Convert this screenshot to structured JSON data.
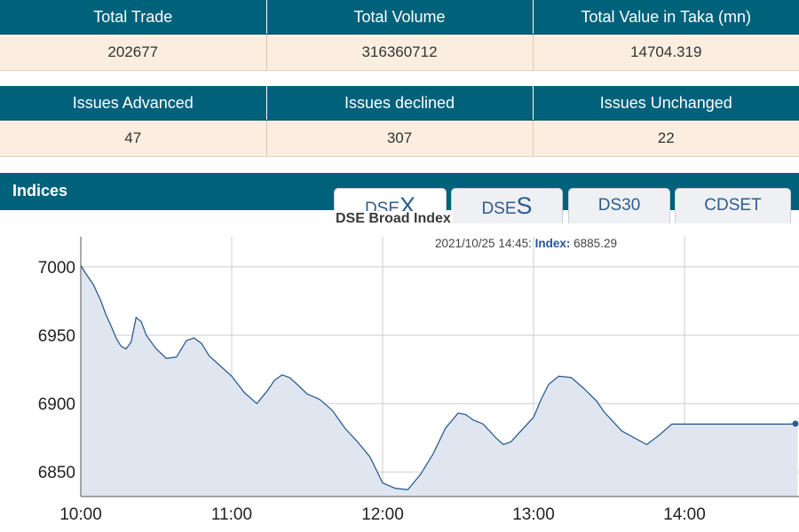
{
  "summary": {
    "headers": [
      "Total Trade",
      "Total Volume",
      "Total Value in Taka (mn)"
    ],
    "values": [
      "202677",
      "316360712",
      "14704.319"
    ]
  },
  "issues": {
    "headers": [
      "Issues Advanced",
      "Issues declined",
      "Issues Unchanged"
    ],
    "values": [
      "47",
      "307",
      "22"
    ]
  },
  "indices": {
    "title": "Indices",
    "tabs": [
      {
        "prefix": "DSE",
        "suffix": "X",
        "active": true
      },
      {
        "prefix": "DSE",
        "suffix": "S",
        "active": false
      },
      {
        "prefix": "DS30",
        "suffix": "",
        "active": false
      },
      {
        "prefix": "CDSET",
        "suffix": "",
        "active": false
      }
    ]
  },
  "tooltip": {
    "datetime": "2021/10/25 14:45:",
    "label": "Index:",
    "value": "6885.29"
  },
  "colors": {
    "header_bg": "#00617b",
    "value_bg": "#fbeee0",
    "line": "#2c5d8f",
    "area_fill": "#dfe6f0",
    "grid": "#cccccc"
  },
  "chart_data": {
    "type": "area",
    "title": "DSE Broad Index",
    "xlabel": "",
    "ylabel": "",
    "x_ticks": [
      "10:00",
      "11:00",
      "12:00",
      "13:00",
      "14:00"
    ],
    "y_ticks": [
      6850,
      6900,
      6950,
      7000
    ],
    "xlim": [
      "10:00",
      "14:45"
    ],
    "ylim": [
      6832,
      7022
    ],
    "grid": true,
    "legend": "none",
    "series": [
      {
        "x": [
          "10:00",
          "10:02",
          "10:05",
          "10:08",
          "10:10",
          "10:12",
          "10:14",
          "10:16",
          "10:18",
          "10:20",
          "10:22",
          "10:24",
          "10:26",
          "10:28",
          "10:30",
          "10:34",
          "10:38",
          "10:42",
          "10:45",
          "10:48",
          "10:51",
          "10:54",
          "11:00",
          "11:05",
          "11:10",
          "11:14",
          "11:17",
          "11:20",
          "11:23",
          "11:26",
          "11:30",
          "11:35",
          "11:40",
          "11:45",
          "11:50",
          "11:55",
          "12:00",
          "12:05",
          "12:10",
          "12:15",
          "12:20",
          "12:25",
          "12:30",
          "12:33",
          "12:36",
          "12:40",
          "12:45",
          "12:48",
          "12:51",
          "12:55",
          "13:00",
          "13:03",
          "13:06",
          "13:10",
          "13:15",
          "13:20",
          "13:25",
          "13:28",
          "13:31",
          "13:35",
          "13:40",
          "13:45",
          "13:50",
          "13:55",
          "13:59",
          "14:02",
          "14:05",
          "14:08",
          "14:11",
          "14:14",
          "14:17",
          "14:20",
          "14:24",
          "14:27",
          "14:29",
          "14:30",
          "14:32",
          "14:35",
          "14:38",
          "14:40",
          "14:42",
          "14:45"
        ],
        "values": [
          7001,
          6995,
          6987,
          6975,
          6965,
          6957,
          6948,
          6942,
          6940,
          6945,
          6963,
          6960,
          6950,
          6945,
          6940,
          6933,
          6934,
          6946,
          6948,
          6944,
          6935,
          6930,
          6920,
          6908,
          6900,
          6909,
          6917,
          6921,
          6919,
          6914,
          6907,
          6903,
          6895,
          6882,
          6872,
          6861,
          6842,
          6838,
          6837,
          6848,
          6863,
          6882,
          6893,
          6892,
          6888,
          6885,
          6875,
          6870,
          6872,
          6880,
          6890,
          6903,
          6914,
          6920,
          6919,
          6911,
          6902,
          6894,
          6888,
          6880,
          6875,
          6870,
          6877,
          6885,
          6885,
          6885,
          6885,
          6885,
          6885,
          6885,
          6885,
          6885,
          6885,
          6885,
          6885,
          6885,
          6885,
          6885,
          6885,
          6885,
          6885,
          6885.29
        ]
      }
    ]
  }
}
